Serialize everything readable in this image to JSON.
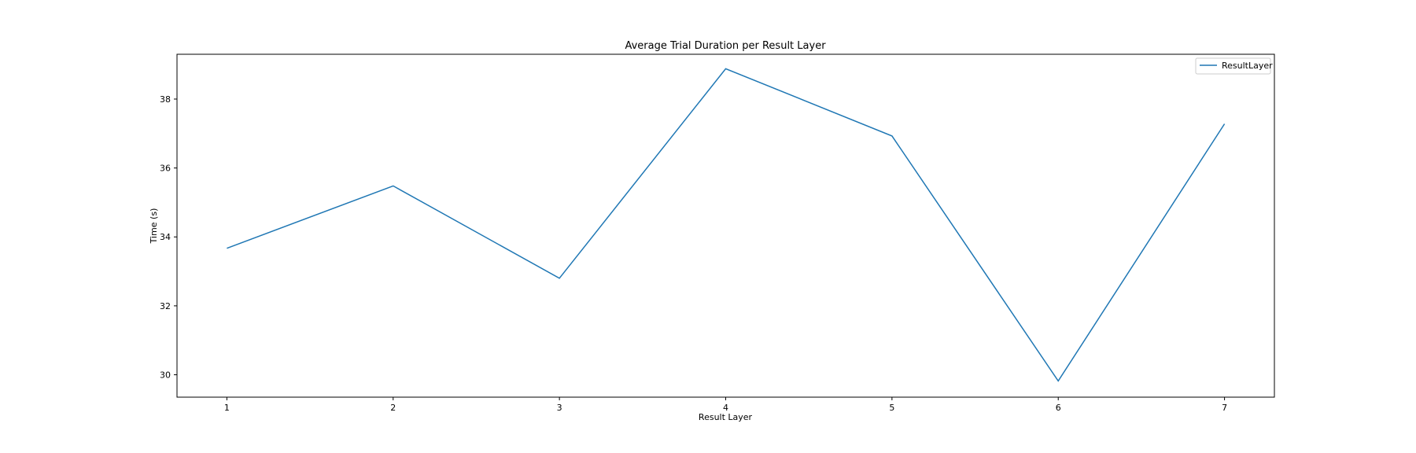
{
  "chart_data": {
    "type": "line",
    "title": "Average Trial Duration per Result Layer",
    "xlabel": "Result Layer",
    "ylabel": "Time (s)",
    "x": [
      1,
      2,
      3,
      4,
      5,
      6,
      7
    ],
    "xticks": [
      "1",
      "2",
      "3",
      "4",
      "5",
      "6",
      "7"
    ],
    "yticks": [
      "30",
      "32",
      "34",
      "36",
      "38"
    ],
    "ylim": [
      29.35,
      39.3
    ],
    "xlim": [
      0.7,
      7.3
    ],
    "grid": false,
    "legend_position": "top-right",
    "series": [
      {
        "name": "ResultLayer",
        "color": "#1f77b4",
        "values": [
          33.67,
          35.48,
          32.8,
          38.88,
          36.93,
          29.82,
          37.28
        ]
      }
    ]
  }
}
